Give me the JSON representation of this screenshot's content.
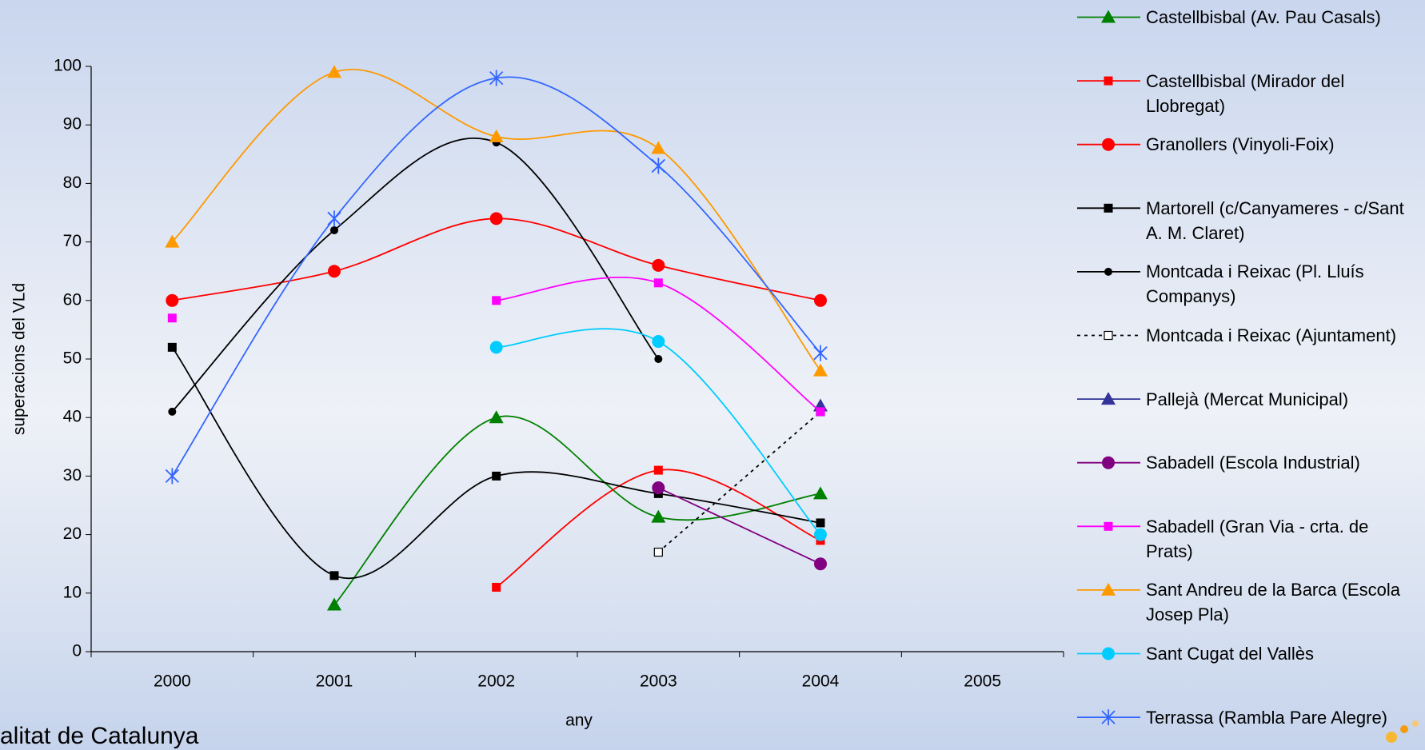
{
  "chart_data": {
    "type": "line",
    "y_label": "superacions del VLd",
    "x_label": "any",
    "footer_text": "alitat de Catalunya",
    "categories": [
      "2000",
      "2001",
      "2002",
      "2003",
      "2004",
      "2005"
    ],
    "ylim": [
      0,
      100
    ],
    "yticks": [
      0,
      10,
      20,
      30,
      40,
      50,
      60,
      70,
      80,
      90,
      100
    ],
    "grid": false,
    "smooth": true,
    "legend": "right",
    "series": [
      {
        "name": "Castellbisbal (Av. Pau Casals)",
        "color": "#008000",
        "marker": "triangle",
        "values": [
          null,
          8,
          40,
          23,
          27,
          null
        ]
      },
      {
        "name": "Castellbisbal (Mirador del Llobregat)",
        "color": "#ff0000",
        "marker": "square",
        "values": [
          null,
          null,
          11,
          31,
          19,
          null
        ]
      },
      {
        "name": "Granollers (Vinyoli-Foix)",
        "color": "#ff0000",
        "marker": "circle",
        "values": [
          60,
          65,
          74,
          66,
          60,
          null
        ]
      },
      {
        "name": "Martorell (c/Canyameres - c/Sant A. M. Claret)",
        "color": "#000000",
        "marker": "square",
        "values": [
          52,
          13,
          30,
          27,
          22,
          null
        ]
      },
      {
        "name": "Montcada i Reixac (Pl. Lluís Companys)",
        "color": "#000000",
        "marker": "dot",
        "values": [
          41,
          72,
          87,
          50,
          null,
          null
        ]
      },
      {
        "name": "Montcada i Reixac (Ajuntament)",
        "color": "#000000",
        "marker": "open-square",
        "dashed": true,
        "values": [
          null,
          null,
          null,
          17,
          41,
          null
        ]
      },
      {
        "name": "Pallejà (Mercat Municipal)",
        "color": "#333399",
        "marker": "triangle",
        "values": [
          null,
          null,
          null,
          null,
          42,
          null
        ]
      },
      {
        "name": "Sabadell (Escola Industrial)",
        "color": "#800080",
        "marker": "circle",
        "values": [
          null,
          null,
          null,
          28,
          15,
          null
        ]
      },
      {
        "name": "Sabadell (Gran Via - crta. de Prats)",
        "color": "#ff00ff",
        "marker": "square",
        "values": [
          57,
          null,
          60,
          63,
          41,
          null
        ]
      },
      {
        "name": "Sant Andreu de la Barca (Escola Josep Pla)",
        "color": "#ff9900",
        "marker": "triangle",
        "values": [
          70,
          99,
          88,
          86,
          48,
          null
        ]
      },
      {
        "name": "Sant Cugat del Vallès",
        "color": "#00ccff",
        "marker": "circle",
        "values": [
          null,
          null,
          52,
          53,
          20,
          null
        ]
      },
      {
        "name": "Terrassa (Rambla Pare Alegre)",
        "color": "#3366ff",
        "marker": "star",
        "values": [
          30,
          74,
          98,
          83,
          51,
          null
        ]
      }
    ]
  }
}
